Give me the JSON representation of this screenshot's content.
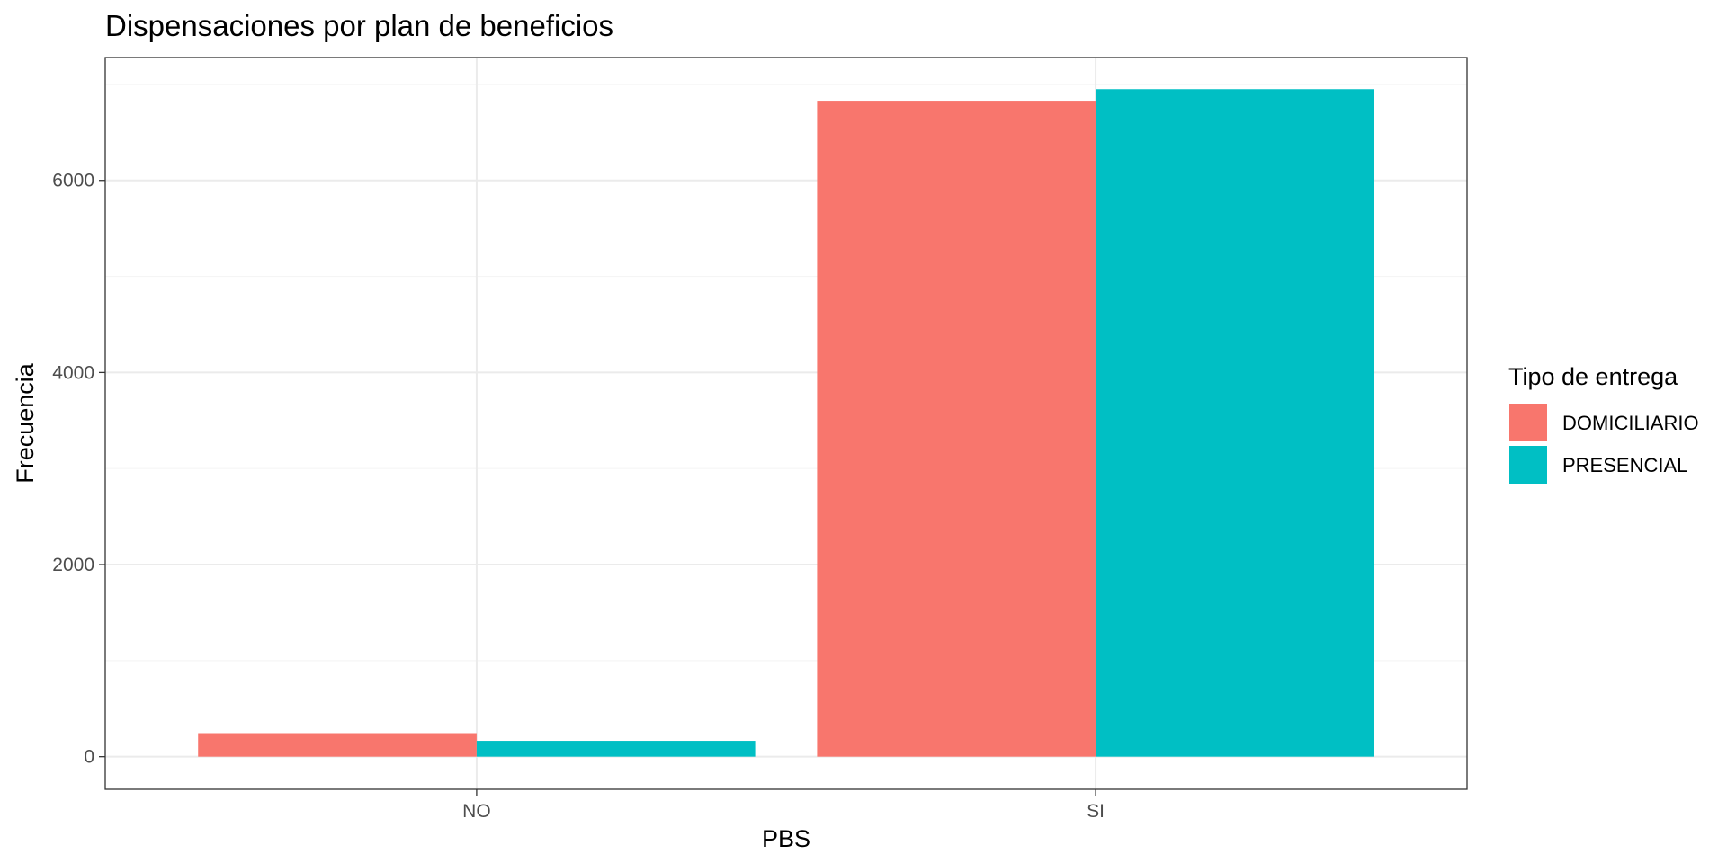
{
  "chart_data": {
    "type": "bar",
    "title": "Dispensaciones por plan de beneficios",
    "xlabel": "PBS",
    "ylabel": "Frecuencia",
    "categories": [
      "NO",
      "SI"
    ],
    "series": [
      {
        "name": "DOMICILIARIO",
        "color": "#F8766D",
        "values": [
          245,
          6830
        ]
      },
      {
        "name": "PRESENCIAL",
        "color": "#00BFC4",
        "values": [
          165,
          6950
        ]
      }
    ],
    "ylim": [
      -340,
      7280
    ],
    "yticks": [
      0,
      2000,
      4000,
      6000
    ],
    "yticks_minor": [
      1000,
      3000,
      5000,
      7000
    ],
    "y_tick_labels": [
      "0",
      "2000",
      "4000",
      "6000"
    ],
    "grid": true,
    "legend": {
      "title": "Tipo de entrega",
      "position": "right"
    },
    "theme": {
      "panel_border": "#333333",
      "grid_major": "#EBEBEB",
      "grid_minor": "#F5F5F5"
    }
  }
}
